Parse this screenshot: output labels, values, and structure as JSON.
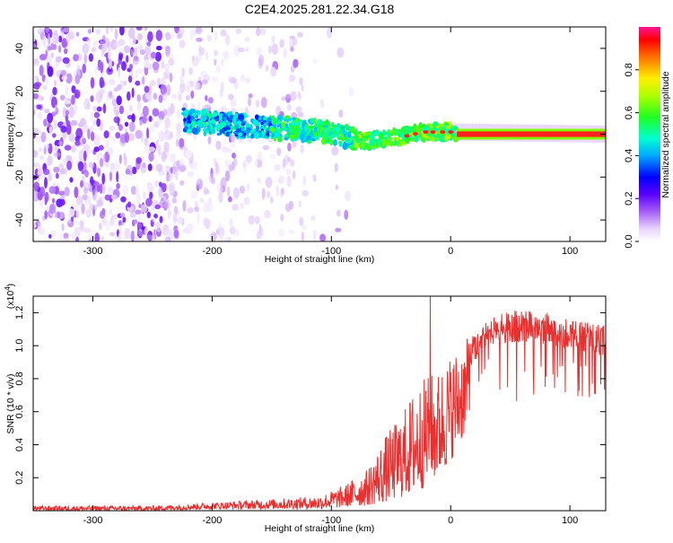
{
  "title": "C2E4.2025.281.22.34.G18",
  "chart_data": [
    {
      "type": "heatmap",
      "name": "spectrogram",
      "xlabel": "Height of straight line (km)",
      "ylabel": "Frequency (Hz)",
      "xlim": [
        -350,
        130
      ],
      "ylim": [
        -50,
        50
      ],
      "xticks": [
        -300,
        -200,
        -100,
        0,
        100
      ],
      "yticks": [
        -40,
        -20,
        0,
        20,
        40
      ],
      "xtick_labels": [
        "-300",
        "-200",
        "-100",
        "0",
        "100"
      ],
      "ytick_labels": [
        "-40",
        "-20",
        "0",
        "20",
        "40"
      ],
      "colorbar": {
        "label": "Normalized spectral amplitude",
        "range": [
          0.0,
          1.0
        ],
        "ticks": [
          0.0,
          0.2,
          0.4,
          0.6,
          0.8
        ],
        "tick_labels": [
          "0.0",
          "0.2",
          "0.4",
          "0.6",
          "0.8"
        ],
        "colors": [
          "#ffffff",
          "#d8b8f8",
          "#7a00ff",
          "#0000ff",
          "#00c8ff",
          "#00ff80",
          "#80ff00",
          "#ffff00",
          "#ff8000",
          "#ff0000",
          "#ff1493"
        ]
      },
      "ridge": {
        "description": "signal ridge near 0 Hz",
        "x_start": -225,
        "x_end": 130,
        "center_hz": [
          [
            -225,
            7
          ],
          [
            -200,
            5
          ],
          [
            -150,
            3
          ],
          [
            -100,
            1
          ],
          [
            -75,
            -3
          ],
          [
            -50,
            -2
          ],
          [
            -25,
            1
          ],
          [
            0,
            1
          ],
          [
            130,
            0
          ]
        ],
        "strong_from_km": 5
      }
    },
    {
      "type": "line",
      "name": "snr",
      "xlabel": "Height of straight line (km)",
      "ylabel": "SNR (10 * v/v)",
      "exponent_label": "(x10",
      "exponent_value": "4",
      "exponent_close": ")",
      "xlim": [
        -350,
        130
      ],
      "ylim": [
        0,
        1.3
      ],
      "xticks": [
        -300,
        -200,
        -100,
        0,
        100
      ],
      "yticks": [
        0.2,
        0.4,
        0.6,
        0.8,
        1.0,
        1.2
      ],
      "xtick_labels": [
        "-300",
        "-200",
        "-100",
        "0",
        "100"
      ],
      "ytick_labels": [
        "0.2",
        "0.4",
        "0.6",
        "0.8",
        "1.0",
        "1.2"
      ],
      "color": "#e83030",
      "envelope": [
        {
          "x": -350,
          "low": 0.0,
          "high": 0.03
        },
        {
          "x": -250,
          "low": 0.0,
          "high": 0.03
        },
        {
          "x": -200,
          "low": 0.01,
          "high": 0.05
        },
        {
          "x": -150,
          "low": 0.01,
          "high": 0.07
        },
        {
          "x": -110,
          "low": 0.01,
          "high": 0.09
        },
        {
          "x": -90,
          "low": 0.02,
          "high": 0.15
        },
        {
          "x": -70,
          "low": 0.03,
          "high": 0.25
        },
        {
          "x": -55,
          "low": 0.05,
          "high": 0.45
        },
        {
          "x": -40,
          "low": 0.08,
          "high": 0.6
        },
        {
          "x": -30,
          "low": 0.1,
          "high": 0.75
        },
        {
          "x": -20,
          "low": 0.15,
          "high": 0.82
        },
        {
          "x": -10,
          "low": 0.2,
          "high": 0.85
        },
        {
          "x": 0,
          "low": 0.3,
          "high": 0.95
        },
        {
          "x": 15,
          "low": 0.5,
          "high": 1.05
        },
        {
          "x": 30,
          "low": 0.7,
          "high": 1.15
        },
        {
          "x": 50,
          "low": 0.65,
          "high": 1.22
        },
        {
          "x": 80,
          "low": 0.65,
          "high": 1.2
        },
        {
          "x": 110,
          "low": 0.62,
          "high": 1.15
        },
        {
          "x": 130,
          "low": 0.6,
          "high": 1.12
        }
      ],
      "spike": {
        "x": -17,
        "y": 1.3
      }
    }
  ]
}
